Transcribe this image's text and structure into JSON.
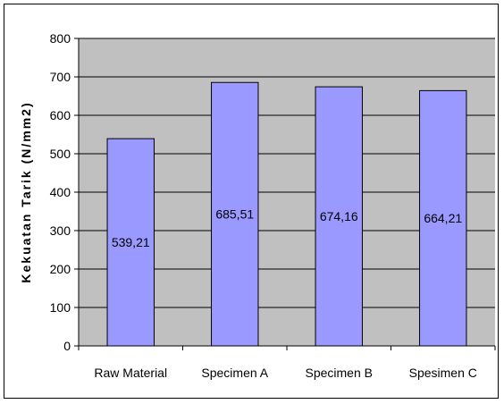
{
  "chart_data": {
    "type": "bar",
    "title": "",
    "xlabel": "",
    "ylabel": "Kekuatan Tarik (N/mm2)",
    "categories": [
      "Raw Material",
      "Specimen A",
      "Specimen B",
      "Spesimen C"
    ],
    "values": [
      539.21,
      685.51,
      674.16,
      664.21
    ],
    "data_labels": [
      "539,21",
      "685,51",
      "674,16",
      "664,21"
    ],
    "ylim": [
      0,
      800
    ],
    "yticks": [
      0,
      100,
      200,
      300,
      400,
      500,
      600,
      700,
      800
    ],
    "grid": true,
    "legend": "none",
    "colors": {
      "plot_background": "#c0c0c0",
      "bar_fill": "#9999ff",
      "bar_stroke": "#000000",
      "gridline": "#000000"
    }
  }
}
